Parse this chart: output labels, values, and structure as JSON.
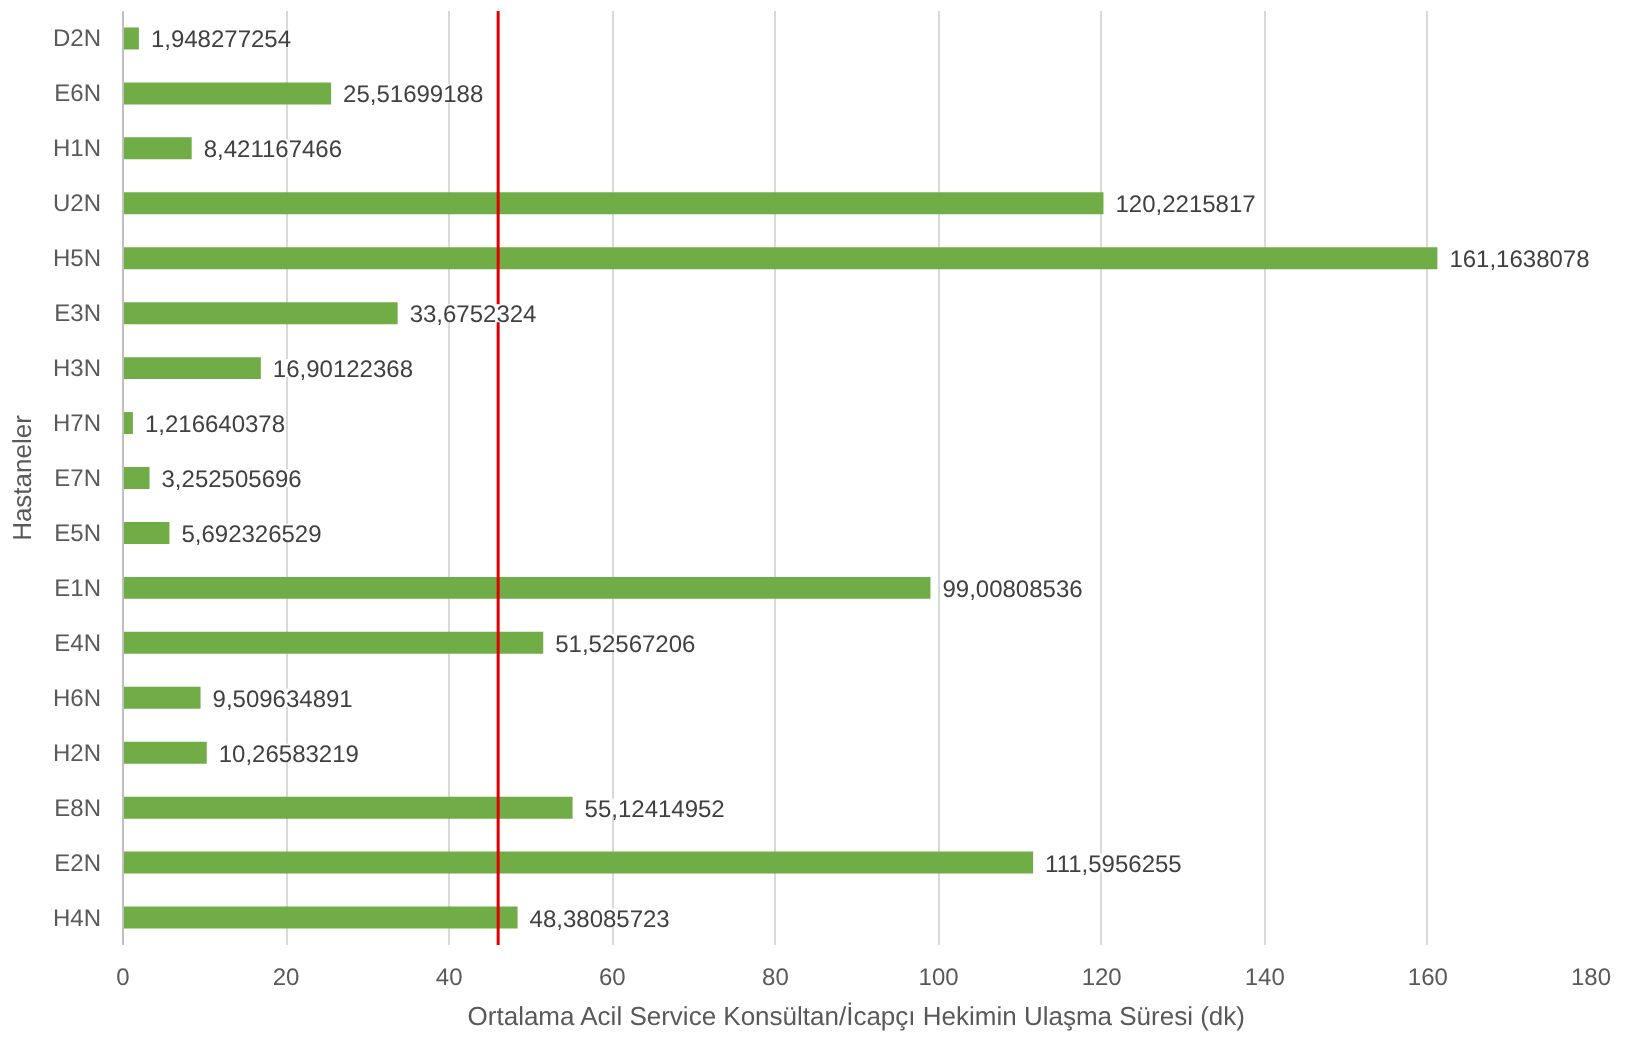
{
  "chart_data": {
    "type": "bar",
    "orientation": "horizontal",
    "xlabel": "Ortalama Acil Service Konsültan/İcapçı Hekimin Ulaşma Süresi (dk)",
    "ylabel": "Hastaneler",
    "categories": [
      "D2N",
      "E6N",
      "H1N",
      "U2N",
      "H5N",
      "E3N",
      "H3N",
      "H7N",
      "E7N",
      "E5N",
      "E1N",
      "E4N",
      "H6N",
      "H2N",
      "E8N",
      "E2N",
      "H4N"
    ],
    "values": [
      1.948277254,
      25.51699188,
      8.421167466,
      120.2215817,
      161.1638078,
      33.6752324,
      16.90122368,
      1.216640378,
      3.252505696,
      5.692326529,
      99.00808536,
      51.52567206,
      9.509634891,
      10.26583219,
      55.12414952,
      111.5956255,
      48.38085723
    ],
    "value_labels": [
      "1,948277254",
      "25,51699188",
      "8,421167466",
      "120,2215817",
      "161,1638078",
      "33,6752324",
      "16,90122368",
      "1,216640378",
      "3,252505696",
      "5,692326529",
      "99,00808536",
      "51,52567206",
      "9,509634891",
      "10,26583219",
      "55,12414952",
      "111,5956255",
      "48,38085723"
    ],
    "color": "#70ad47",
    "xlim": [
      0,
      180
    ],
    "xticks": [
      0,
      20,
      40,
      60,
      80,
      100,
      120,
      140,
      160,
      180
    ],
    "grid": "x",
    "ref_lines": [
      {
        "axis": "x",
        "value": 46,
        "color": "#e00000"
      }
    ]
  }
}
